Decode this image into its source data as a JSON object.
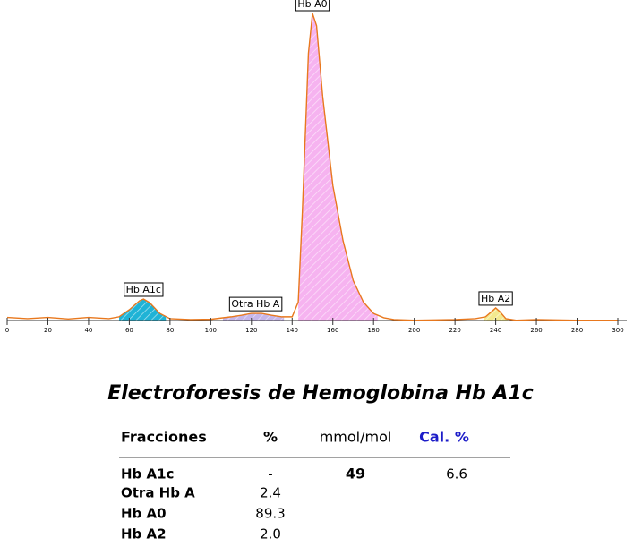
{
  "chart_data": {
    "type": "line",
    "x": [
      0,
      10,
      20,
      30,
      40,
      50,
      55,
      60,
      65,
      67,
      70,
      75,
      80,
      90,
      100,
      110,
      115,
      120,
      125,
      130,
      135,
      140,
      143,
      145,
      148,
      150,
      152,
      155,
      160,
      165,
      170,
      175,
      180,
      185,
      190,
      200,
      220,
      230,
      235,
      238,
      240,
      242,
      245,
      250,
      260,
      280,
      300
    ],
    "series": [
      {
        "color": "#e8781e",
        "values": [
          1,
          0.6,
          1,
          0.5,
          1,
          0.6,
          1.2,
          3.5,
          6.4,
          7,
          5.8,
          2.3,
          0.6,
          0.3,
          0.4,
          1.2,
          1.7,
          2.3,
          2.3,
          1.7,
          1.2,
          1.2,
          6,
          35,
          87,
          100,
          96,
          73,
          44,
          26,
          13,
          6,
          2.3,
          0.9,
          0.3,
          0.1,
          0.3,
          0.6,
          1.2,
          2.9,
          4.1,
          2.9,
          0.6,
          0.1,
          0.3,
          0.1,
          0.1
        ]
      }
    ],
    "peaks": [
      {
        "label": "Hb A1c",
        "x": 67,
        "start": 55,
        "end": 78,
        "color": "#1fb3d6"
      },
      {
        "label": "Otra Hb A",
        "x": 122,
        "start": 106,
        "end": 136,
        "color": "#c6b6ea"
      },
      {
        "label": "Hb A0",
        "x": 150,
        "start": 143,
        "end": 182,
        "color": "#f6b3f0"
      },
      {
        "label": "Hb A2",
        "x": 240,
        "start": 234,
        "end": 246,
        "color": "#f3e98e"
      }
    ],
    "xlim": [
      0,
      300
    ],
    "ylim": [
      0,
      100
    ],
    "xticks": [
      0,
      20,
      40,
      60,
      80,
      100,
      120,
      140,
      160,
      180,
      200,
      220,
      240,
      260,
      280,
      300
    ]
  },
  "report": {
    "title": "Electroforesis de Hemoglobina Hb A1c",
    "headers": [
      "Fracciones",
      "%",
      "mmol/mol",
      "Cal. %"
    ],
    "rows": [
      [
        "Hb A1c",
        "-",
        "49",
        "6.6"
      ],
      [
        "Otra Hb A",
        "2.4"
      ],
      [
        "Hb A0",
        "89.3"
      ],
      [
        "Hb A2",
        "2.0"
      ]
    ]
  }
}
